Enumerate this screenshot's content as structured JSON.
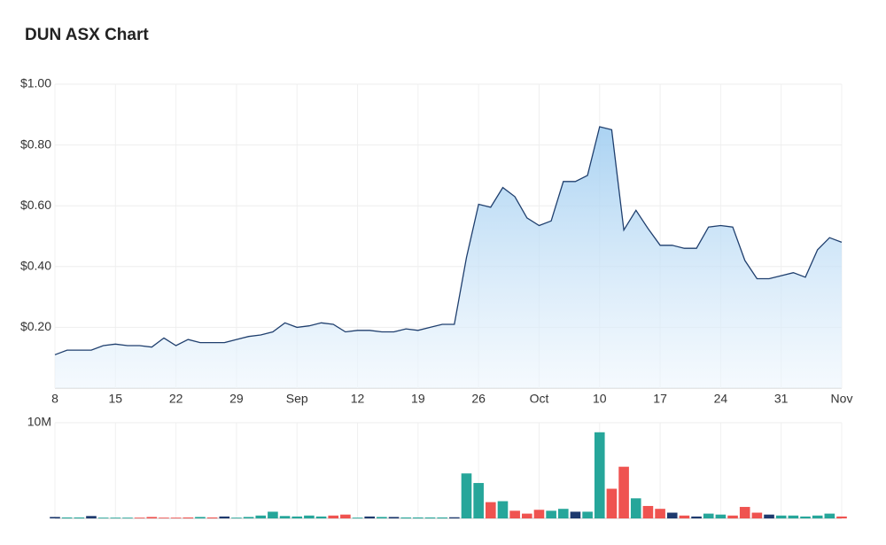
{
  "chart_data": [
    {
      "type": "line",
      "title": "DUN ASX Chart",
      "categories": [
        "8",
        null,
        null,
        null,
        null,
        "15",
        null,
        null,
        null,
        null,
        "22",
        null,
        null,
        null,
        null,
        "29",
        null,
        null,
        null,
        null,
        "Sep",
        null,
        null,
        null,
        null,
        "12",
        null,
        null,
        null,
        null,
        "19",
        null,
        null,
        null,
        null,
        "26",
        null,
        null,
        null,
        null,
        "Oct",
        null,
        null,
        null,
        null,
        "10",
        null,
        null,
        null,
        null,
        "17",
        null,
        null,
        null,
        null,
        "24",
        null,
        null,
        null,
        null,
        "31",
        null,
        null,
        null,
        null,
        "Nov"
      ],
      "values": [
        0.11,
        0.125,
        0.125,
        0.125,
        0.14,
        0.145,
        0.14,
        0.14,
        0.135,
        0.165,
        0.14,
        0.16,
        0.15,
        0.15,
        0.15,
        0.16,
        0.17,
        0.175,
        0.185,
        0.215,
        0.2,
        0.205,
        0.215,
        0.21,
        0.185,
        0.19,
        0.19,
        0.185,
        0.185,
        0.195,
        0.19,
        0.2,
        0.21,
        0.21,
        0.43,
        0.605,
        0.595,
        0.66,
        0.63,
        0.56,
        0.535,
        0.55,
        0.68,
        0.68,
        0.7,
        0.86,
        0.85,
        0.52,
        0.585,
        0.525,
        0.47,
        0.47,
        0.46,
        0.46,
        0.53,
        0.535,
        0.53,
        0.42,
        0.36,
        0.36,
        0.37,
        0.38,
        0.365,
        0.455,
        0.495,
        0.48
      ],
      "color": "#1f3f6e",
      "ylim": [
        0,
        1
      ],
      "yticks": [
        {
          "value": 0.2,
          "label": "$0.20"
        },
        {
          "value": 0.4,
          "label": "$0.40"
        },
        {
          "value": 0.6,
          "label": "$0.60"
        },
        {
          "value": 0.8,
          "label": "$0.80"
        },
        {
          "value": 1,
          "label": "$1.00"
        }
      ],
      "grid": true
    },
    {
      "type": "bar",
      "values": [
        150000,
        100000,
        100000,
        250000,
        80000,
        80000,
        80000,
        80000,
        150000,
        80000,
        80000,
        100000,
        150000,
        100000,
        200000,
        80000,
        150000,
        300000,
        700000,
        250000,
        200000,
        300000,
        200000,
        300000,
        400000,
        80000,
        200000,
        150000,
        150000,
        100000,
        100000,
        100000,
        100000,
        120000,
        4700000,
        3700000,
        1700000,
        1800000,
        800000,
        500000,
        900000,
        800000,
        1000000,
        700000,
        700000,
        9000000,
        3100000,
        5400000,
        2100000,
        1300000,
        1000000,
        600000,
        300000,
        200000,
        500000,
        400000,
        300000,
        1200000,
        600000,
        400000,
        300000,
        300000,
        200000,
        300000,
        500000,
        200000
      ],
      "colors": [
        "#1e3a6e",
        "#26a69a",
        "#26a69a",
        "#1e3a6e",
        "#26a69a",
        "#26a69a",
        "#26a69a",
        "#ef5350",
        "#ef5350",
        "#ef5350",
        "#ef5350",
        "#ef5350",
        "#26a69a",
        "#ef5350",
        "#1e3a6e",
        "#26a69a",
        "#26a69a",
        "#26a69a",
        "#26a69a",
        "#26a69a",
        "#26a69a",
        "#26a69a",
        "#26a69a",
        "#ef5350",
        "#ef5350",
        "#26a69a",
        "#1e3a6e",
        "#26a69a",
        "#1e3a6e",
        "#26a69a",
        "#26a69a",
        "#26a69a",
        "#26a69a",
        "#1e3a6e",
        "#26a69a",
        "#26a69a",
        "#ef5350",
        "#26a69a",
        "#ef5350",
        "#ef5350",
        "#ef5350",
        "#26a69a",
        "#26a69a",
        "#1e3a6e",
        "#26a69a",
        "#26a69a",
        "#ef5350",
        "#ef5350",
        "#26a69a",
        "#ef5350",
        "#ef5350",
        "#1e3a6e",
        "#ef5350",
        "#1e3a6e",
        "#26a69a",
        "#26a69a",
        "#ef5350",
        "#ef5350",
        "#ef5350",
        "#1e3a6e",
        "#26a69a",
        "#26a69a",
        "#26a69a",
        "#26a69a",
        "#26a69a",
        "#ef5350"
      ],
      "ylim": [
        0,
        10000000
      ],
      "yticks": [
        {
          "value": 10000000,
          "label": "10M"
        }
      ]
    }
  ]
}
